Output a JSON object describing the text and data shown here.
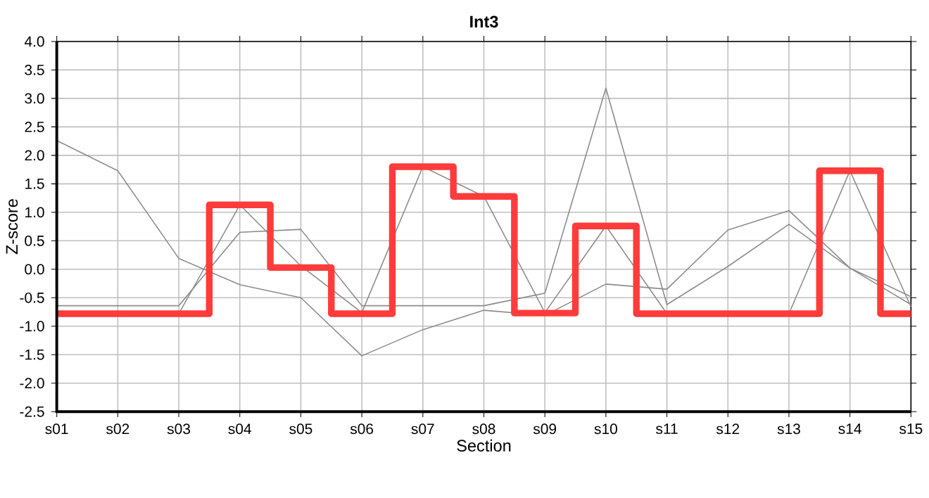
{
  "chart_data": {
    "type": "line",
    "title": "Int3",
    "xlabel": "Section",
    "ylabel": "Z-score",
    "categories": [
      "s01",
      "s02",
      "s03",
      "s04",
      "s05",
      "s06",
      "s07",
      "s08",
      "s09",
      "s10",
      "s11",
      "s12",
      "s13",
      "s14",
      "s15"
    ],
    "series": [
      {
        "color": "#8c8c8c",
        "values": [
          2.26,
          1.73,
          0.19,
          -0.27,
          -0.5,
          -1.52,
          -1.06,
          -0.72,
          -0.81,
          -0.26,
          -0.35,
          0.69,
          1.03,
          0.02,
          -0.48
        ]
      },
      {
        "color": "#8c8c8c",
        "values": [
          -0.64,
          -0.64,
          -0.64,
          0.65,
          0.7,
          -0.64,
          -0.64,
          -0.64,
          -0.42,
          3.18,
          -0.62,
          0.05,
          0.79,
          0.02,
          -0.62
        ]
      },
      {
        "color": "#8c8c8c",
        "values": [
          -0.78,
          -0.78,
          -0.78,
          1.13,
          0.06,
          -0.76,
          1.8,
          1.28,
          -0.76,
          0.76,
          -0.78,
          -0.78,
          -0.78,
          1.73,
          -0.66
        ]
      },
      {
        "type": "step",
        "color": "#ff3b3b",
        "values": [
          -0.78,
          -0.78,
          -0.78,
          1.13,
          0.03,
          -0.78,
          1.8,
          1.28,
          -0.77,
          0.76,
          -0.78,
          -0.78,
          -0.78,
          1.73,
          -0.78
        ]
      }
    ],
    "ylim": [
      -2.5,
      4.0
    ],
    "yticks": [
      {
        "value": -2.5,
        "label": "-2.5"
      },
      {
        "value": -2,
        "label": "-2.0"
      },
      {
        "value": -1.5,
        "label": "-1.5"
      },
      {
        "value": -1,
        "label": "-1.0"
      },
      {
        "value": -0.5,
        "label": "-0.5"
      },
      {
        "value": 0,
        "label": "0.0"
      },
      {
        "value": 0.5,
        "label": "0.5"
      },
      {
        "value": 1,
        "label": "1.0"
      },
      {
        "value": 1.5,
        "label": "1.5"
      },
      {
        "value": 2,
        "label": "2.0"
      },
      {
        "value": 2.5,
        "label": "2.5"
      },
      {
        "value": 3,
        "label": "3.0"
      },
      {
        "value": 3.5,
        "label": "3.5"
      },
      {
        "value": 4,
        "label": "4.0"
      }
    ],
    "grid": true,
    "legend": false
  }
}
